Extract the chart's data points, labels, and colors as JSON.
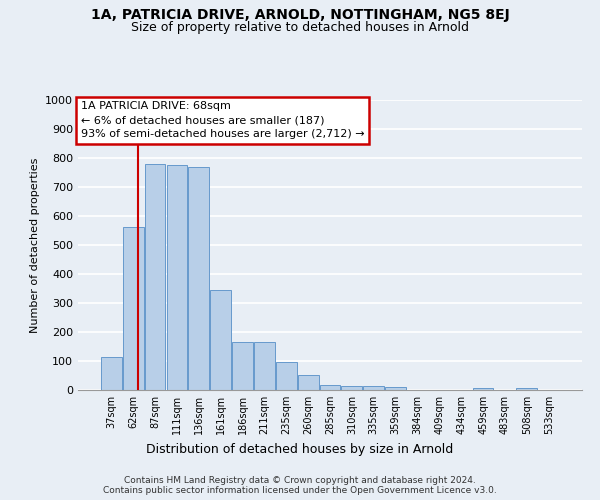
{
  "title1": "1A, PATRICIA DRIVE, ARNOLD, NOTTINGHAM, NG5 8EJ",
  "title2": "Size of property relative to detached houses in Arnold",
  "xlabel": "Distribution of detached houses by size in Arnold",
  "ylabel": "Number of detached properties",
  "categories": [
    "37sqm",
    "62sqm",
    "87sqm",
    "111sqm",
    "136sqm",
    "161sqm",
    "186sqm",
    "211sqm",
    "235sqm",
    "260sqm",
    "285sqm",
    "310sqm",
    "335sqm",
    "359sqm",
    "384sqm",
    "409sqm",
    "434sqm",
    "459sqm",
    "483sqm",
    "508sqm",
    "533sqm"
  ],
  "values": [
    113,
    563,
    780,
    775,
    770,
    345,
    165,
    165,
    98,
    52,
    18,
    15,
    15,
    11,
    0,
    0,
    0,
    8,
    0,
    8,
    0
  ],
  "bar_color": "#b8cfe8",
  "bar_edge_color": "#6699cc",
  "vline_color": "#cc0000",
  "vline_position": 1.24,
  "annotation_text": "1A PATRICIA DRIVE: 68sqm\n← 6% of detached houses are smaller (187)\n93% of semi-detached houses are larger (2,712) →",
  "annotation_box_facecolor": "#ffffff",
  "annotation_box_edgecolor": "#cc0000",
  "ylim": [
    0,
    1000
  ],
  "yticks": [
    0,
    100,
    200,
    300,
    400,
    500,
    600,
    700,
    800,
    900,
    1000
  ],
  "bg_color": "#e8eef5",
  "grid_color": "#ffffff",
  "title1_fontsize": 10,
  "title2_fontsize": 9,
  "ylabel_fontsize": 8,
  "xlabel_fontsize": 9,
  "tick_fontsize": 8,
  "xtick_fontsize": 7,
  "annot_fontsize": 8,
  "footnote_fontsize": 6.5,
  "footnote": "Contains HM Land Registry data © Crown copyright and database right 2024.\nContains public sector information licensed under the Open Government Licence v3.0."
}
